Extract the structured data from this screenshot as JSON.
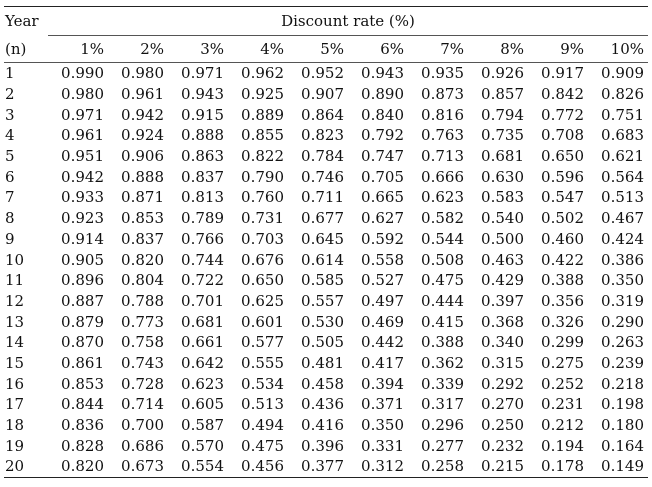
{
  "table": {
    "year_header": "Year",
    "group_header": "Discount rate (%)",
    "period_label": "(n)",
    "rate_headers": [
      "1%",
      "2%",
      "3%",
      "4%",
      "5%",
      "6%",
      "7%",
      "8%",
      "9%",
      "10%"
    ],
    "rows": [
      {
        "year": "1",
        "values": [
          "0.990",
          "0.980",
          "0.971",
          "0.962",
          "0.952",
          "0.943",
          "0.935",
          "0.926",
          "0.917",
          "0.909"
        ]
      },
      {
        "year": "2",
        "values": [
          "0.980",
          "0.961",
          "0.943",
          "0.925",
          "0.907",
          "0.890",
          "0.873",
          "0.857",
          "0.842",
          "0.826"
        ]
      },
      {
        "year": "3",
        "values": [
          "0.971",
          "0.942",
          "0.915",
          "0.889",
          "0.864",
          "0.840",
          "0.816",
          "0.794",
          "0.772",
          "0.751"
        ]
      },
      {
        "year": "4",
        "values": [
          "0.961",
          "0.924",
          "0.888",
          "0.855",
          "0.823",
          "0.792",
          "0.763",
          "0.735",
          "0.708",
          "0.683"
        ]
      },
      {
        "year": "5",
        "values": [
          "0.951",
          "0.906",
          "0.863",
          "0.822",
          "0.784",
          "0.747",
          "0.713",
          "0.681",
          "0.650",
          "0.621"
        ]
      },
      {
        "year": "6",
        "values": [
          "0.942",
          "0.888",
          "0.837",
          "0.790",
          "0.746",
          "0.705",
          "0.666",
          "0.630",
          "0.596",
          "0.564"
        ]
      },
      {
        "year": "7",
        "values": [
          "0.933",
          "0.871",
          "0.813",
          "0.760",
          "0.711",
          "0.665",
          "0.623",
          "0.583",
          "0.547",
          "0.513"
        ]
      },
      {
        "year": "8",
        "values": [
          "0.923",
          "0.853",
          "0.789",
          "0.731",
          "0.677",
          "0.627",
          "0.582",
          "0.540",
          "0.502",
          "0.467"
        ]
      },
      {
        "year": "9",
        "values": [
          "0.914",
          "0.837",
          "0.766",
          "0.703",
          "0.645",
          "0.592",
          "0.544",
          "0.500",
          "0.460",
          "0.424"
        ]
      },
      {
        "year": "10",
        "values": [
          "0.905",
          "0.820",
          "0.744",
          "0.676",
          "0.614",
          "0.558",
          "0.508",
          "0.463",
          "0.422",
          "0.386"
        ]
      },
      {
        "year": "11",
        "values": [
          "0.896",
          "0.804",
          "0.722",
          "0.650",
          "0.585",
          "0.527",
          "0.475",
          "0.429",
          "0.388",
          "0.350"
        ]
      },
      {
        "year": "12",
        "values": [
          "0.887",
          "0.788",
          "0.701",
          "0.625",
          "0.557",
          "0.497",
          "0.444",
          "0.397",
          "0.356",
          "0.319"
        ]
      },
      {
        "year": "13",
        "values": [
          "0.879",
          "0.773",
          "0.681",
          "0.601",
          "0.530",
          "0.469",
          "0.415",
          "0.368",
          "0.326",
          "0.290"
        ]
      },
      {
        "year": "14",
        "values": [
          "0.870",
          "0.758",
          "0.661",
          "0.577",
          "0.505",
          "0.442",
          "0.388",
          "0.340",
          "0.299",
          "0.263"
        ]
      },
      {
        "year": "15",
        "values": [
          "0.861",
          "0.743",
          "0.642",
          "0.555",
          "0.481",
          "0.417",
          "0.362",
          "0.315",
          "0.275",
          "0.239"
        ]
      },
      {
        "year": "16",
        "values": [
          "0.853",
          "0.728",
          "0.623",
          "0.534",
          "0.458",
          "0.394",
          "0.339",
          "0.292",
          "0.252",
          "0.218"
        ]
      },
      {
        "year": "17",
        "values": [
          "0.844",
          "0.714",
          "0.605",
          "0.513",
          "0.436",
          "0.371",
          "0.317",
          "0.270",
          "0.231",
          "0.198"
        ]
      },
      {
        "year": "18",
        "values": [
          "0.836",
          "0.700",
          "0.587",
          "0.494",
          "0.416",
          "0.350",
          "0.296",
          "0.250",
          "0.212",
          "0.180"
        ]
      },
      {
        "year": "19",
        "values": [
          "0.828",
          "0.686",
          "0.570",
          "0.475",
          "0.396",
          "0.331",
          "0.277",
          "0.232",
          "0.194",
          "0.164"
        ]
      },
      {
        "year": "20",
        "values": [
          "0.820",
          "0.673",
          "0.554",
          "0.456",
          "0.377",
          "0.312",
          "0.258",
          "0.215",
          "0.178",
          "0.149"
        ]
      }
    ]
  }
}
